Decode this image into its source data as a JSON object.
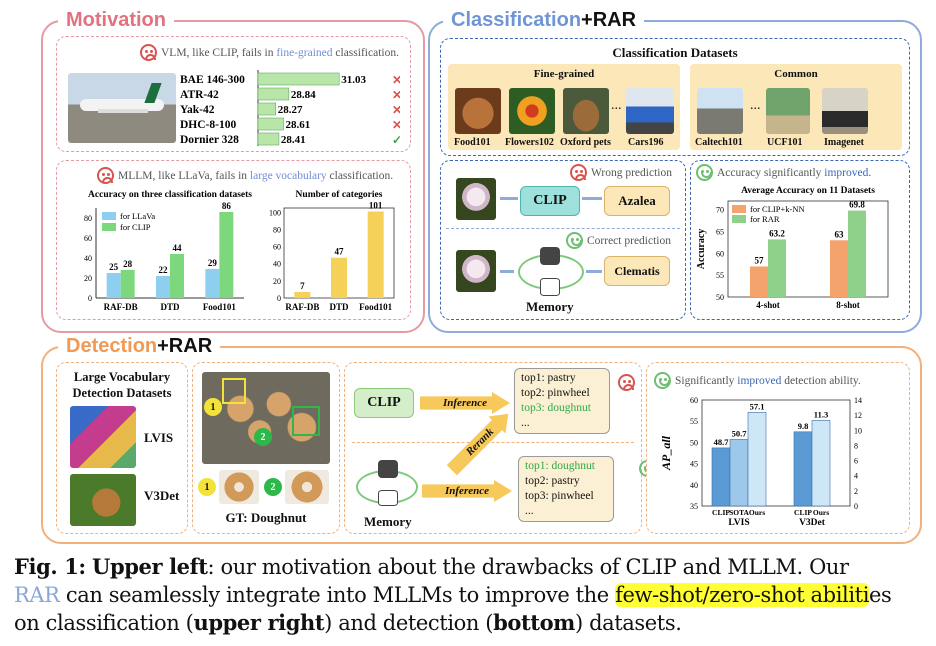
{
  "motivation": {
    "title": "Motivation",
    "vlm_note": {
      "prefix": "VLM, like CLIP, fails in ",
      "highlight": "fine-grained",
      "suffix": " classification."
    },
    "aircraft": [
      {
        "name": "BAE 146-300",
        "score": 31.03,
        "mark": "✕"
      },
      {
        "name": "ATR-42",
        "score": 28.84,
        "mark": "✕"
      },
      {
        "name": "Yak-42",
        "score": 28.27,
        "mark": "✕"
      },
      {
        "name": "DHC-8-100",
        "score": 28.61,
        "mark": "✕"
      },
      {
        "name": "Dornier 328",
        "score": 28.41,
        "mark": "✓"
      }
    ],
    "mllm_note": {
      "prefix": "MLLM, like LLaVa, fails in ",
      "highlight": "large vocabulary",
      "suffix": " classification."
    }
  },
  "classification": {
    "title_main": "Classification",
    "title_plus": "+RAR",
    "datasets_title": "Classification Datasets",
    "fine_grained": "Fine-grained",
    "common": "Common",
    "fine_items": [
      "Food101",
      "Flowers102",
      "Oxford pets",
      "Cars196"
    ],
    "common_items": [
      "Caltech101",
      "UCF101",
      "Imagenet"
    ],
    "ellipsis": "...",
    "wrong_prediction": "Wrong prediction",
    "correct_prediction": "Correct prediction",
    "clip_label": "CLIP",
    "wrong_answer": "Azalea",
    "right_answer": "Clematis",
    "memory": "Memory",
    "improved_note": {
      "prefix": "Accuracy significantly ",
      "highlight": "improved",
      "suffix": "."
    }
  },
  "detection": {
    "title_main": "Detection",
    "title_plus": "+RAR",
    "datasets_title": [
      "Large Vocabulary",
      "Detection Datasets"
    ],
    "lvis": "LVIS",
    "v3det": "V3Det",
    "gt": "GT:  Doughnut",
    "marker1": "1",
    "marker2": "2",
    "clip_label": "CLIP",
    "inference": "Inference",
    "rerank": "Rerank",
    "memory": "Memory",
    "before": [
      "top1: pastry",
      "top2: pinwheel",
      "top3: doughnut",
      "..."
    ],
    "after": [
      "top1: doughnut",
      "top2: pastry",
      "top3: pinwheel",
      "..."
    ],
    "improved_note": {
      "prefix": "Significantly ",
      "highlight": "improved",
      "suffix": " detection ability."
    }
  },
  "chart_data": [
    {
      "type": "bar",
      "title": "",
      "categories": [
        "BAE 146-300",
        "ATR-42",
        "Yak-42",
        "DHC-8-100",
        "Dornier 328"
      ],
      "values": [
        31.03,
        28.84,
        28.27,
        28.61,
        28.41
      ],
      "orientation": "horizontal",
      "colors": {
        "bar": "#b8e6a8"
      }
    },
    {
      "type": "bar",
      "title": "Accuracy on three classification datasets",
      "categories": [
        "RAF-DB",
        "DTD",
        "Food101"
      ],
      "series": [
        {
          "name": "for LLaVa",
          "values": [
            25,
            22,
            29
          ],
          "color": "#8ecff0"
        },
        {
          "name": "for CLIP",
          "values": [
            28,
            44,
            86
          ],
          "color": "#7dd87d"
        }
      ],
      "yticks": [
        0,
        20,
        40,
        60,
        80
      ],
      "ylim": [
        0,
        90
      ],
      "legend": "top-left"
    },
    {
      "type": "bar",
      "title": "Number of categories",
      "categories": [
        "RAF-DB",
        "DTD",
        "Food101"
      ],
      "values": [
        7,
        47,
        101
      ],
      "yticks": [
        0,
        20,
        40,
        60,
        80,
        100
      ],
      "ylim": [
        0,
        105
      ],
      "color": "#f5d15a"
    },
    {
      "type": "bar",
      "title": "Average Accuracy on 11 Datasets",
      "categories": [
        "4-shot",
        "8-shot"
      ],
      "series": [
        {
          "name": "for CLIP+k-NN",
          "values": [
            57,
            63
          ],
          "color": "#f4a36c"
        },
        {
          "name": "for RAR",
          "values": [
            63.2,
            69.8
          ],
          "color": "#8fd08a"
        }
      ],
      "ylabel": "Accuracy",
      "yticks": [
        50,
        55,
        60,
        65,
        70
      ],
      "ylim": [
        50,
        72
      ],
      "legend": "top-left"
    },
    {
      "type": "bar",
      "title": "",
      "ylabel": "AP_all",
      "groups": [
        {
          "name": "LVIS",
          "categories": [
            "CLIP",
            "SOTA",
            "Ours"
          ],
          "values": [
            48.7,
            50.7,
            57.1
          ],
          "ylim": [
            35,
            60
          ]
        },
        {
          "name": "V3Det",
          "categories": [
            "CLIP",
            "Ours"
          ],
          "values": [
            9.8,
            11.3
          ],
          "ylim": [
            0,
            14
          ]
        }
      ],
      "left_yticks": [
        35,
        40,
        45,
        50,
        55,
        60
      ],
      "right_yticks": [
        0,
        2,
        4,
        6,
        8,
        10,
        12,
        14
      ],
      "colors": {
        "clip": "#5b9bd5",
        "sota": "#9dc8ea",
        "ours": "#cde6f8"
      }
    }
  ],
  "caption": {
    "fig": "Fig. 1:",
    "upper_left": "Upper left",
    "part1": ": our motivation about the drawbacks of CLIP and MLLM. Our",
    "rar": "RAR",
    "part2": " can seamlessly integrate into MLLMs to improve the ",
    "highlight": "few-shot/zero-shot abiliti",
    "after_hl": "es",
    "part3": "on classification (",
    "upper_right": "upper right",
    "part4": ") and detection (",
    "bottom": "bottom",
    "part5": ") datasets."
  }
}
